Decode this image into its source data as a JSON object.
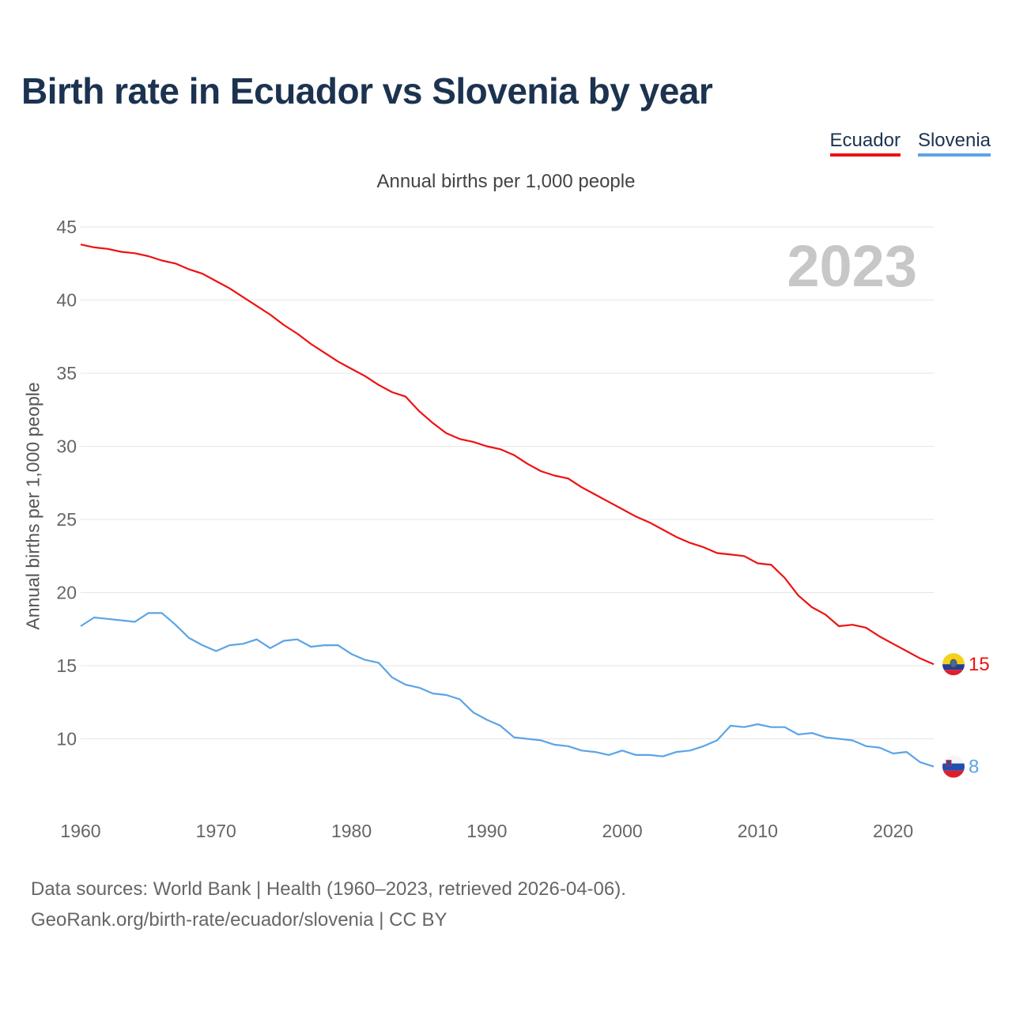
{
  "title": "Birth rate in Ecuador vs Slovenia by year",
  "legend": [
    {
      "label": "Ecuador",
      "color": "#ee1111"
    },
    {
      "label": "Slovenia",
      "color": "#5ba4e6"
    }
  ],
  "year_label": "2023",
  "footer": {
    "line1": "Data sources: World Bank | Health (1960–2023, retrieved 2026-04-06).",
    "line2": "GeoRank.org/birth-rate/ecuador/slovenia | CC BY"
  },
  "chart_data": {
    "type": "line",
    "title": "Annual births per 1,000 people",
    "xlabel": "",
    "ylabel": "Annual births per 1,000 people",
    "xlim": [
      1960,
      2023
    ],
    "ylim": [
      5,
      45
    ],
    "yticks": [
      10,
      15,
      20,
      25,
      30,
      35,
      40,
      45
    ],
    "xticks": [
      1960,
      1970,
      1980,
      1990,
      2000,
      2010,
      2020
    ],
    "grid": true,
    "x": [
      1960,
      1961,
      1962,
      1963,
      1964,
      1965,
      1966,
      1967,
      1968,
      1969,
      1970,
      1971,
      1972,
      1973,
      1974,
      1975,
      1976,
      1977,
      1978,
      1979,
      1980,
      1981,
      1982,
      1983,
      1984,
      1985,
      1986,
      1987,
      1988,
      1989,
      1990,
      1991,
      1992,
      1993,
      1994,
      1995,
      1996,
      1997,
      1998,
      1999,
      2000,
      2001,
      2002,
      2003,
      2004,
      2005,
      2006,
      2007,
      2008,
      2009,
      2010,
      2011,
      2012,
      2013,
      2014,
      2015,
      2016,
      2017,
      2018,
      2019,
      2020,
      2021,
      2022,
      2023
    ],
    "series": [
      {
        "name": "Ecuador",
        "color": "#ee1111",
        "end_label": "15",
        "values": [
          43.8,
          43.6,
          43.5,
          43.3,
          43.2,
          43.0,
          42.7,
          42.5,
          42.1,
          41.8,
          41.3,
          40.8,
          40.2,
          39.6,
          39.0,
          38.3,
          37.7,
          37.0,
          36.4,
          35.8,
          35.3,
          34.8,
          34.2,
          33.7,
          33.4,
          32.4,
          31.6,
          30.9,
          30.5,
          30.3,
          30.0,
          29.8,
          29.4,
          28.8,
          28.3,
          28.0,
          27.8,
          27.2,
          26.7,
          26.2,
          25.7,
          25.2,
          24.8,
          24.3,
          23.8,
          23.4,
          23.1,
          22.7,
          22.6,
          22.5,
          22.0,
          21.9,
          21.0,
          19.8,
          19.0,
          18.5,
          17.7,
          17.8,
          17.6,
          17.0,
          16.5,
          16.0,
          15.5,
          15.1
        ]
      },
      {
        "name": "Slovenia",
        "color": "#5ba4e6",
        "end_label": "8",
        "values": [
          17.7,
          18.3,
          18.2,
          18.1,
          18.0,
          18.6,
          18.6,
          17.8,
          16.9,
          16.4,
          16.0,
          16.4,
          16.5,
          16.8,
          16.2,
          16.7,
          16.8,
          16.3,
          16.4,
          16.4,
          15.8,
          15.4,
          15.2,
          14.2,
          13.7,
          13.5,
          13.1,
          13.0,
          12.7,
          11.8,
          11.3,
          10.9,
          10.1,
          10.0,
          9.9,
          9.6,
          9.5,
          9.2,
          9.1,
          8.9,
          9.2,
          8.9,
          8.9,
          8.8,
          9.1,
          9.2,
          9.5,
          9.9,
          10.9,
          10.8,
          11.0,
          10.8,
          10.8,
          10.3,
          10.4,
          10.1,
          10.0,
          9.9,
          9.5,
          9.4,
          9.0,
          9.1,
          8.4,
          8.1
        ]
      }
    ]
  }
}
